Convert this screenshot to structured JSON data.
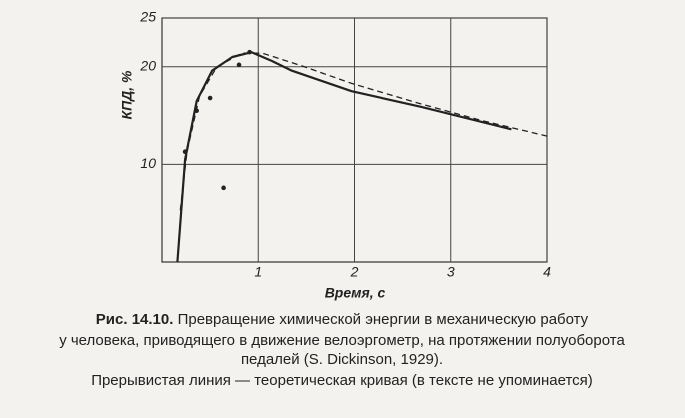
{
  "chart_data": {
    "type": "line",
    "xlabel": "Время, с",
    "ylabel": "КПД, %",
    "xlim": [
      0,
      4
    ],
    "ylim": [
      0,
      25
    ],
    "xticks": [
      1,
      2,
      3,
      4
    ],
    "yticks": [
      10,
      20,
      25
    ],
    "grid": true,
    "series": [
      {
        "style": "solid",
        "color": "#222222",
        "x": [
          0.16,
          0.24,
          0.36,
          0.52,
          0.73,
          0.93,
          1.14,
          1.35,
          1.97,
          2.69,
          3.63
        ],
        "values": [
          0,
          10.5,
          16.5,
          19.6,
          21,
          21.5,
          20.6,
          19.6,
          17.5,
          15.9,
          13.6
        ]
      },
      {
        "style": "dashed",
        "color": "#222222",
        "x": [
          0.19,
          0.26,
          0.39,
          0.57,
          0.83,
          1.04,
          1.45,
          1.97,
          2.69,
          3.32,
          4.0
        ],
        "values": [
          5.3,
          11.3,
          17,
          20,
          21.4,
          21.4,
          20.1,
          18.3,
          16.2,
          14.5,
          12.9
        ]
      },
      {
        "style": "points",
        "color": "#222222",
        "x": [
          0.24,
          0.36,
          0.5,
          0.64,
          0.8,
          0.91
        ],
        "values": [
          11.3,
          15.5,
          16.8,
          7.6,
          20.2,
          21.5
        ]
      }
    ],
    "caption": {
      "label": "Рис. 14.10.",
      "line1": "Превращение химической энергии в механическую работу",
      "line2": "у человека, приводящего в движение велоэргометр, на протяжении полуоборота",
      "line3": "педалей (S. Dickinson, 1929).",
      "line4": "Прерывистая линия — теоретическая кривая (в тексте не упоминается)"
    }
  }
}
